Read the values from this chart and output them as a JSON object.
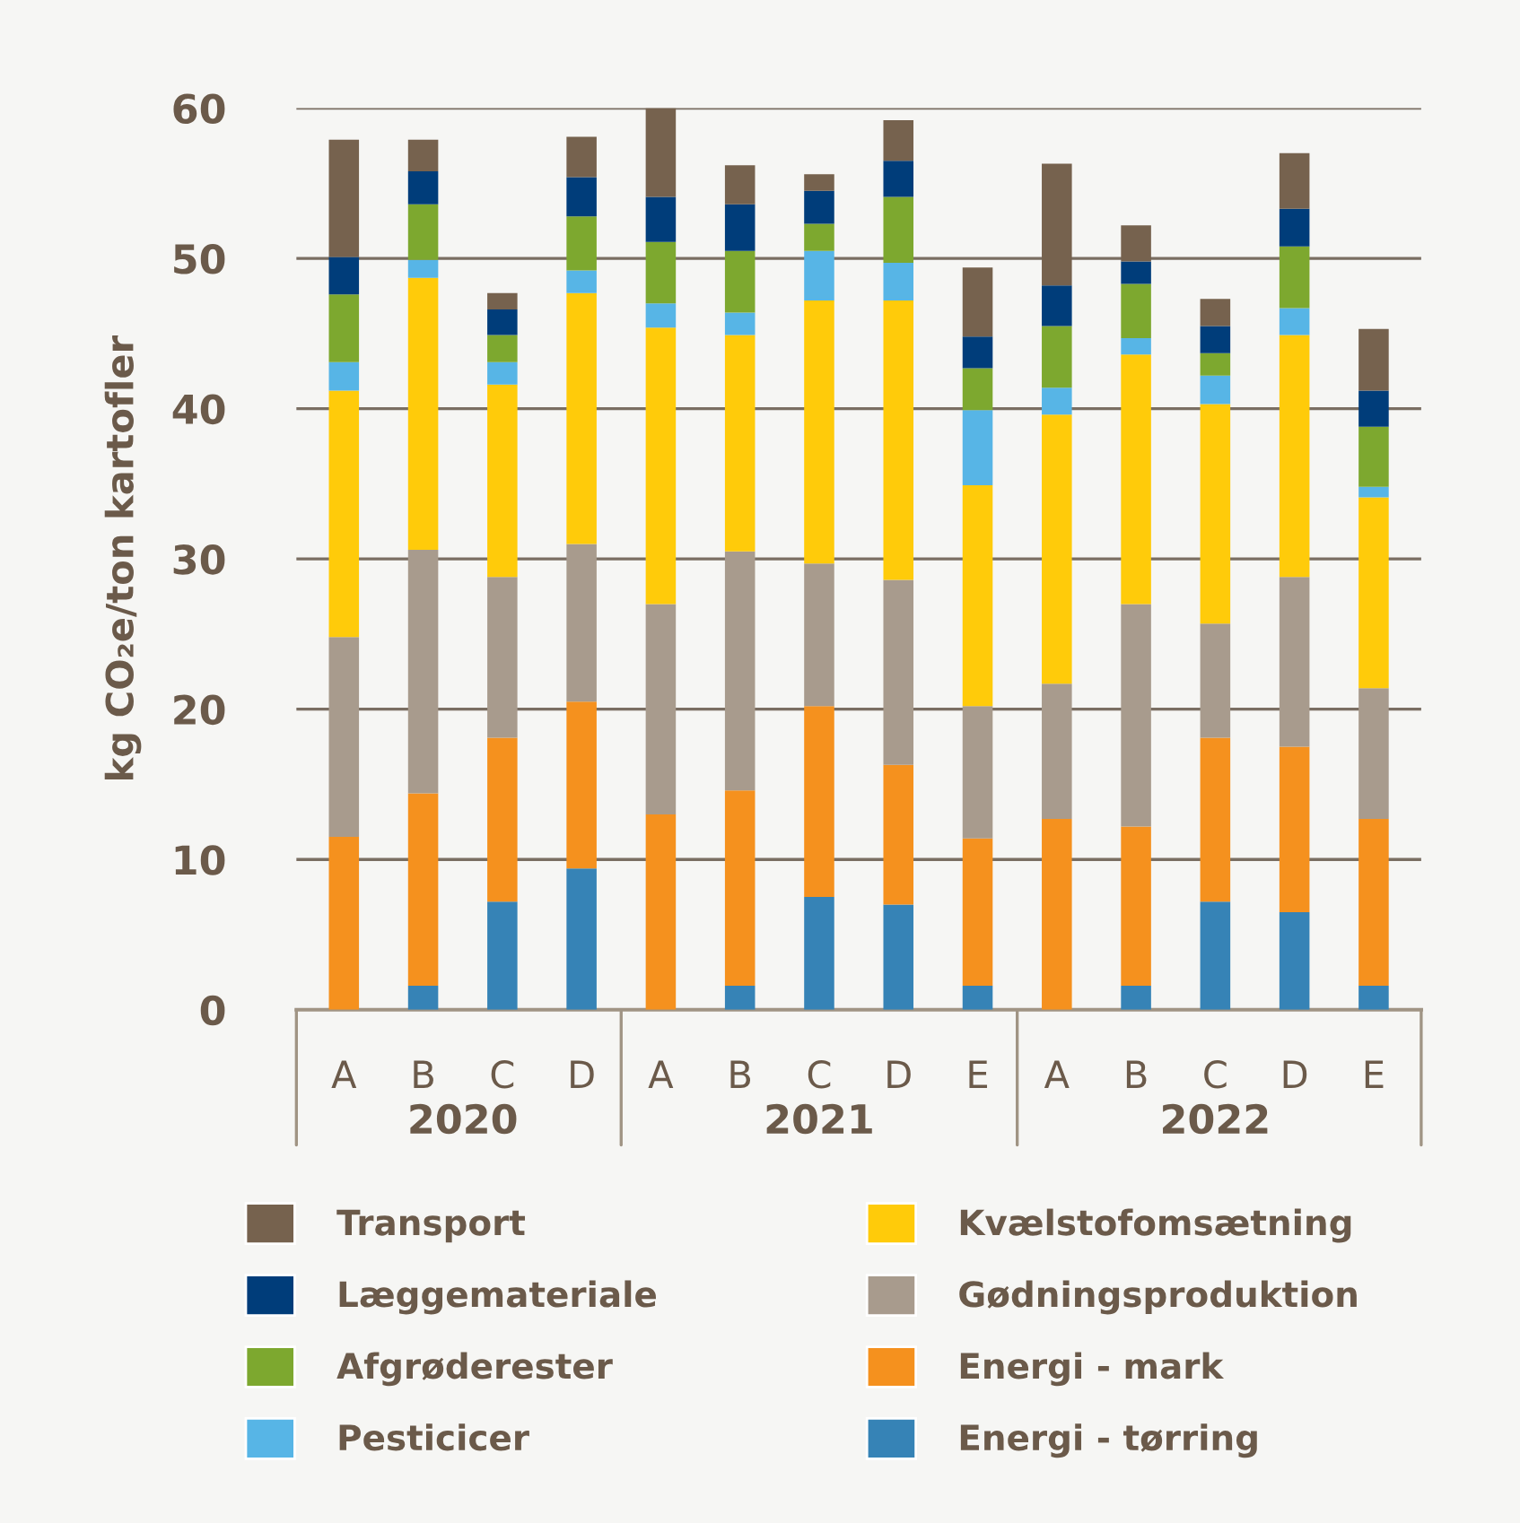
{
  "chart_data": {
    "type": "bar",
    "stacked": true,
    "ylabel": "kg CO₂e/ton kartofler",
    "categories": [
      "A",
      "B",
      "C",
      "D",
      "A",
      "B",
      "C",
      "D",
      "E",
      "A",
      "B",
      "C",
      "D",
      "E"
    ],
    "annotations": [
      "2020",
      "2021",
      "2022"
    ],
    "ylim": [
      0,
      60
    ],
    "yticks": [
      0,
      10,
      20,
      30,
      40,
      50,
      60
    ],
    "grid": "y",
    "legend": "bottom",
    "series": [
      {
        "name": "Energi - tørring",
        "color": "#3683b6",
        "values": [
          0,
          1.6,
          7.2,
          9.4,
          0,
          1.6,
          7.5,
          7.0,
          1.6,
          0,
          1.6,
          7.2,
          6.5,
          1.6
        ]
      },
      {
        "name": "Energi - mark",
        "color": "#f5911e",
        "values": [
          11.5,
          12.8,
          10.9,
          11.1,
          13.0,
          13.0,
          12.7,
          9.3,
          9.8,
          12.7,
          10.6,
          10.9,
          11.0,
          11.1
        ]
      },
      {
        "name": "Gødningsproduktion",
        "color": "#a89b8d",
        "values": [
          13.3,
          16.2,
          10.7,
          10.5,
          14.0,
          15.9,
          9.5,
          12.3,
          8.8,
          9.0,
          14.8,
          7.6,
          11.3,
          8.7
        ]
      },
      {
        "name": "Kvælstofomsætning",
        "color": "#ffcb0a",
        "values": [
          16.4,
          18.1,
          12.8,
          16.7,
          18.4,
          14.4,
          17.5,
          18.6,
          14.7,
          17.9,
          16.6,
          14.6,
          16.1,
          12.7
        ]
      },
      {
        "name": "Pesticicer",
        "color": "#57b5e6",
        "values": [
          1.9,
          1.2,
          1.5,
          1.5,
          1.6,
          1.5,
          3.3,
          2.5,
          5.0,
          1.8,
          1.1,
          1.9,
          1.8,
          0.7
        ]
      },
      {
        "name": "Afgrøderester",
        "color": "#7da82f",
        "values": [
          4.5,
          3.7,
          1.8,
          3.6,
          4.1,
          4.1,
          1.8,
          4.4,
          2.8,
          4.1,
          3.6,
          1.5,
          4.1,
          4.0
        ]
      },
      {
        "name": "Læggemateriale",
        "color": "#003d7a",
        "values": [
          2.5,
          2.2,
          1.7,
          2.6,
          3.0,
          3.1,
          2.2,
          2.4,
          2.1,
          2.7,
          1.5,
          1.8,
          2.5,
          2.4
        ]
      },
      {
        "name": "Transport",
        "color": "#76624e",
        "values": [
          7.8,
          2.1,
          1.1,
          2.7,
          5.9,
          2.6,
          1.1,
          2.7,
          4.6,
          8.1,
          2.4,
          1.8,
          3.7,
          4.1
        ]
      }
    ]
  }
}
